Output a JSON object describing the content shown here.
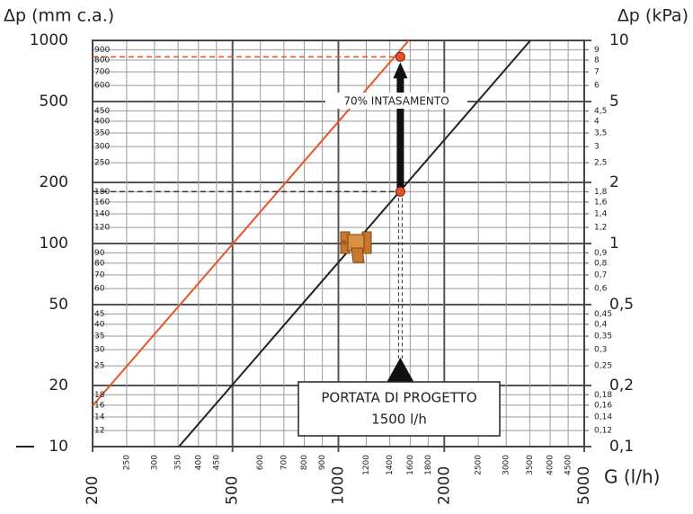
{
  "chart_data": {
    "type": "line",
    "y_label": "Δp (mm c.a.)",
    "y2_label": "Δp (kPa)",
    "x_label": "G (l/h)",
    "log_x": true,
    "log_y": true,
    "grid": true,
    "xlim": [
      200,
      5000
    ],
    "ylim": [
      10,
      1000
    ],
    "y2lim": [
      0.1,
      10
    ],
    "xticks": [
      200,
      500,
      1000,
      2000,
      5000
    ],
    "xticks_minor": [
      250,
      300,
      350,
      400,
      450,
      600,
      700,
      800,
      900,
      1200,
      1400,
      1600,
      1800,
      2500,
      3000,
      3500,
      4000,
      4500
    ],
    "yticks": [
      10,
      20,
      50,
      100,
      200,
      500,
      1000
    ],
    "yticks_minor": [
      12,
      14,
      16,
      18,
      25,
      30,
      35,
      40,
      45,
      60,
      70,
      80,
      90,
      120,
      140,
      160,
      180,
      250,
      300,
      350,
      400,
      450,
      600,
      700,
      800,
      900
    ],
    "y2ticks": [
      {
        "value": 0.1,
        "label": "0,1"
      },
      {
        "value": 0.2,
        "label": "0,2"
      },
      {
        "value": 0.5,
        "label": "0,5"
      },
      1,
      2,
      5,
      10
    ],
    "y2ticks_minor": [
      {
        "value": 0.12,
        "label": "0,12"
      },
      {
        "value": 0.14,
        "label": "0,14"
      },
      {
        "value": 0.16,
        "label": "0,16"
      },
      {
        "value": 0.18,
        "label": "0,18"
      },
      {
        "value": 0.25,
        "label": "0,25"
      },
      {
        "value": 0.3,
        "label": "0,3"
      },
      {
        "value": 0.35,
        "label": "0,35"
      },
      {
        "value": 0.4,
        "label": "0,4"
      },
      {
        "value": 0.45,
        "label": "0,45"
      },
      {
        "value": 0.6,
        "label": "0,6"
      },
      {
        "value": 0.7,
        "label": "0,7"
      },
      {
        "value": 0.8,
        "label": "0,8"
      },
      {
        "value": 0.9,
        "label": "0,9"
      },
      {
        "value": 1.2,
        "label": "1,2"
      },
      {
        "value": 1.4,
        "label": "1,4"
      },
      {
        "value": 1.6,
        "label": "1,6"
      },
      {
        "value": 1.8,
        "label": "1,8"
      },
      {
        "value": 2.5,
        "label": "2,5"
      },
      3,
      {
        "value": 3.5,
        "label": "3,5"
      },
      4,
      {
        "value": 4.5,
        "label": "4,5"
      },
      6,
      7,
      8,
      9
    ],
    "series": [
      {
        "color": "#e8542a",
        "x": [
          200,
          1585
        ],
        "values": [
          15.9,
          1000
        ]
      },
      {
        "color": "#222222",
        "x": [
          352,
          3515
        ],
        "values": [
          10,
          1000
        ]
      }
    ],
    "points": [
      {
        "x": 1500,
        "value": 180,
        "color": "#e8542a"
      },
      {
        "x": 1500,
        "value": 830,
        "color": "#e8542a"
      }
    ],
    "clogging_label": "70% INTASAMENTO",
    "design_flow": {
      "label": "PORTATA DI PROGETTO",
      "value_label": "1500 l/h"
    }
  }
}
